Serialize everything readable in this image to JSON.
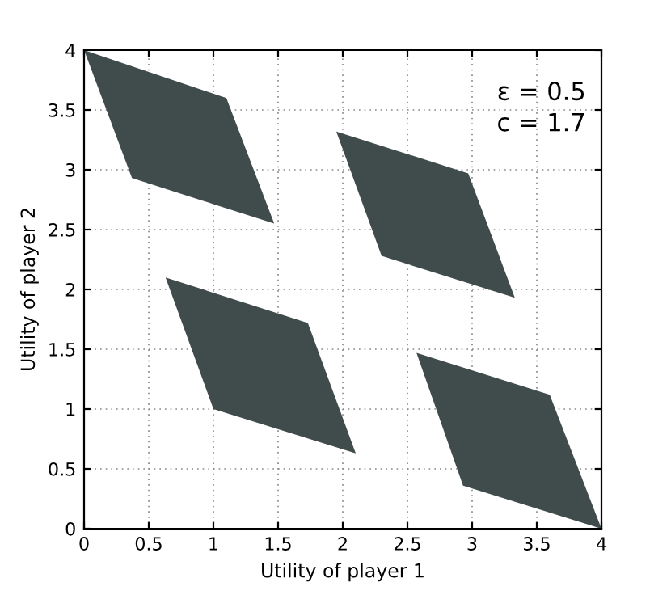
{
  "chart_data": {
    "type": "area",
    "xlabel": "Utility of player 1",
    "ylabel": "Utility of player 2",
    "annotations": [
      "ε = 0.5",
      "c = 1.7"
    ],
    "series": [
      {
        "color": "#404b4b",
        "x": [
          0,
          1.1,
          1.47,
          0.37
        ],
        "values": [
          4,
          3.6,
          2.55,
          2.93
        ]
      },
      {
        "color": "#404b4b",
        "x": [
          1.95,
          2.97,
          3.33,
          2.3
        ],
        "values": [
          3.32,
          2.97,
          1.93,
          2.28
        ]
      },
      {
        "color": "#404b4b",
        "x": [
          0.63,
          1.73,
          2.1,
          1.0
        ],
        "values": [
          2.1,
          1.72,
          0.63,
          1.0
        ]
      },
      {
        "color": "#404b4b",
        "x": [
          2.57,
          3.6,
          4,
          2.93
        ],
        "values": [
          1.47,
          1.12,
          0,
          0.36
        ]
      }
    ],
    "xlim": [
      0,
      4
    ],
    "ylim": [
      0,
      4
    ],
    "xticks": [
      0,
      0.5,
      1,
      1.5,
      2,
      2.5,
      3,
      3.5,
      4
    ],
    "yticks": [
      0,
      0.5,
      1,
      1.5,
      2,
      2.5,
      3,
      3.5,
      4
    ],
    "grid": true
  }
}
